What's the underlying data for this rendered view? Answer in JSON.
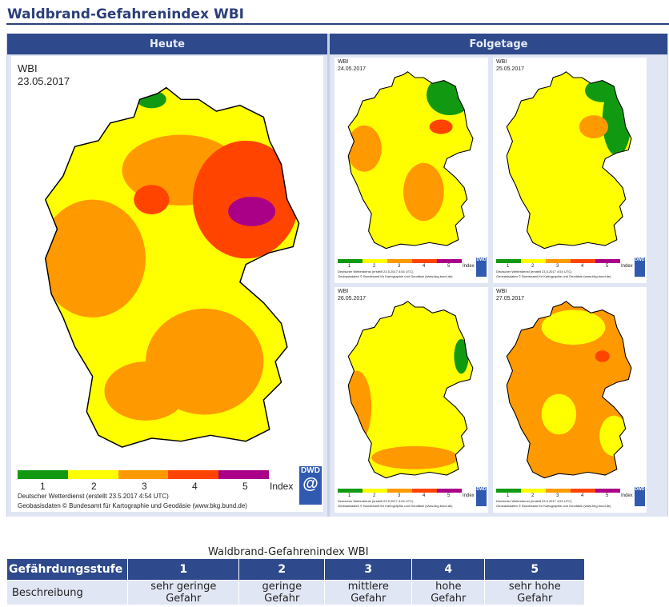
{
  "page_title": "Waldbrand-Gefahrenindex WBI",
  "headers": {
    "today": "Heute",
    "following": "Folgetage"
  },
  "main_map": {
    "label": "WBI",
    "date": "23.05.2017"
  },
  "small_maps": [
    {
      "label": "WBI",
      "date": "24.05.2017"
    },
    {
      "label": "WBI",
      "date": "25.05.2017"
    },
    {
      "label": "WBI",
      "date": "26.05.2017"
    },
    {
      "label": "WBI",
      "date": "27.05.2017"
    }
  ],
  "legend": {
    "levels": [
      "1",
      "2",
      "3",
      "4",
      "5"
    ],
    "colors": [
      "#119a11",
      "#ffff00",
      "#ff9900",
      "#ff4400",
      "#aa0088"
    ],
    "unit": "Index"
  },
  "logo": "DWD",
  "footer": {
    "line1": "Deutscher Wetterdienst (erstellt 23.5.2017 4:54 UTC)",
    "line2": "Geobasisdaten © Bundesamt für Kartographie und Geodäsie (www.bkg.bund.de)"
  },
  "table": {
    "caption": "Waldbrand-Gefahrenindex WBI",
    "header": [
      "Gefährdungsstufe",
      "1",
      "2",
      "3",
      "4",
      "5"
    ],
    "row": [
      "Beschreibung",
      "sehr geringe Gefahr",
      "geringe Gefahr",
      "mittlere Gefahr",
      "hohe Gefahr",
      "sehr hohe Gefahr"
    ]
  }
}
